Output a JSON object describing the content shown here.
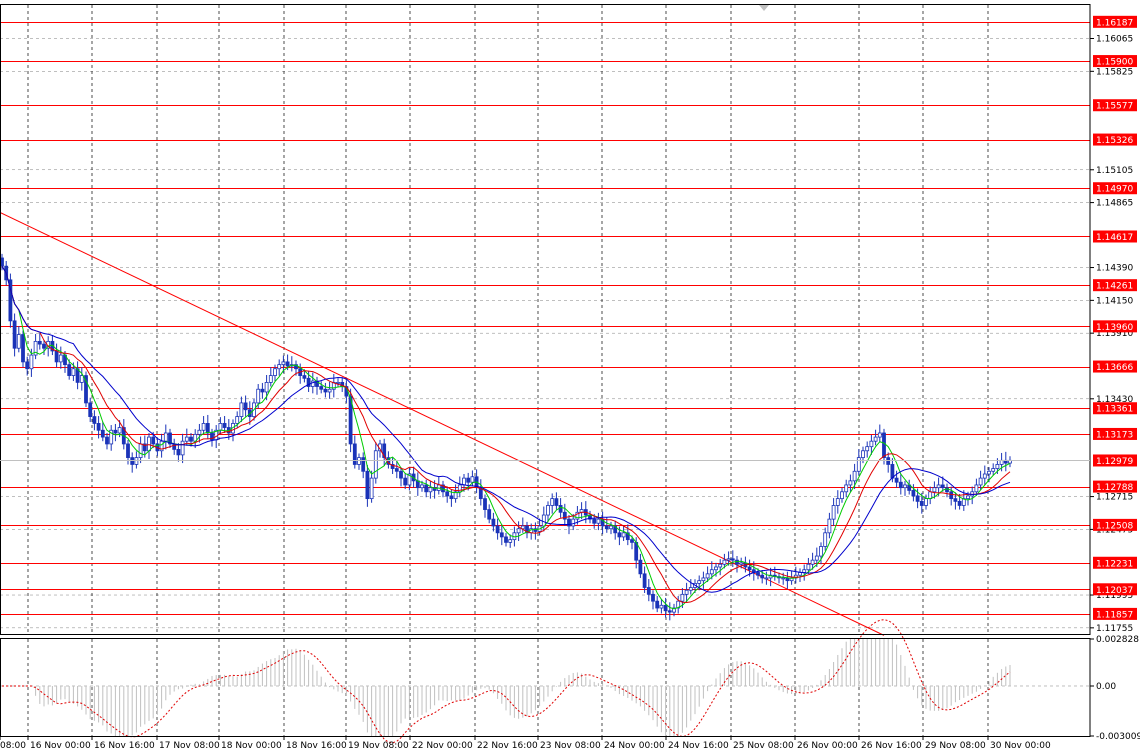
{
  "chart_data": {
    "type": "candlestick",
    "symbol": "",
    "price_range": [
      1.1171,
      1.1631
    ],
    "oscillator_range": [
      -0.003009,
      0.002828
    ],
    "price_ticks": [
      "1.16065",
      "1.15825",
      "1.15105",
      "1.14865",
      "1.14390",
      "1.14150",
      "1.13910",
      "1.13430",
      "1.12715",
      "1.12475",
      "1.11995",
      "1.11755"
    ],
    "oscillator_ticks": [
      "0.002828",
      "0.00",
      "-0.003009"
    ],
    "time_labels": [
      "08:00",
      "16 Nov 00:00",
      "16 Nov 16:00",
      "17 Nov 08:00",
      "18 Nov 00:00",
      "18 Nov 16:00",
      "19 Nov 08:00",
      "22 Nov 00:00",
      "22 Nov 16:00",
      "23 Nov 08:00",
      "24 Nov 00:00",
      "24 Nov 16:00",
      "25 Nov 08:00",
      "26 Nov 00:00",
      "26 Nov 16:00",
      "29 Nov 08:00",
      "30 Nov 00:00"
    ],
    "levels": [
      {
        "price": 1.16187,
        "label": "1.16187"
      },
      {
        "price": 1.159,
        "label": "1.15900"
      },
      {
        "price": 1.15577,
        "label": "1.15577"
      },
      {
        "price": 1.15326,
        "label": "1.15326"
      },
      {
        "price": 1.1497,
        "label": "1.14970"
      },
      {
        "price": 1.14617,
        "label": "1.14617"
      },
      {
        "price": 1.14261,
        "label": "1.14261"
      },
      {
        "price": 1.1396,
        "label": "1.13960"
      },
      {
        "price": 1.13666,
        "label": "1.13666"
      },
      {
        "price": 1.13361,
        "label": "1.13361"
      },
      {
        "price": 1.13173,
        "label": "1.13173"
      },
      {
        "price": 1.12788,
        "label": "1.12788"
      },
      {
        "price": 1.12508,
        "label": "1.12508"
      },
      {
        "price": 1.12231,
        "label": "1.12231"
      },
      {
        "price": 1.12037,
        "label": "1.12037"
      },
      {
        "price": 1.11857,
        "label": "1.11857"
      }
    ],
    "current_price": {
      "price": 1.12979,
      "label": "1.12979"
    },
    "trendline": {
      "from": {
        "bar": -3,
        "price": 1.1483
      },
      "to": {
        "bar": 210,
        "price": 1.117
      }
    },
    "closes": [
      1.144,
      1.143,
      1.14,
      1.138,
      1.139,
      1.137,
      1.1365,
      1.1375,
      1.1385,
      1.1383,
      1.138,
      1.1385,
      1.1378,
      1.137,
      1.1375,
      1.1368,
      1.136,
      1.1365,
      1.1355,
      1.136,
      1.134,
      1.133,
      1.1325,
      1.132,
      1.1315,
      1.131,
      1.132,
      1.1318,
      1.1322,
      1.131,
      1.13,
      1.1295,
      1.13,
      1.131,
      1.1305,
      1.1315,
      1.131,
      1.1305,
      1.1312,
      1.1318,
      1.131,
      1.1306,
      1.1302,
      1.1312,
      1.1315,
      1.1312,
      1.1317,
      1.132,
      1.1325,
      1.1318,
      1.1313,
      1.132,
      1.1325,
      1.1322,
      1.1318,
      1.1325,
      1.133,
      1.134,
      1.1335,
      1.133,
      1.134,
      1.135,
      1.1348,
      1.1355,
      1.136,
      1.1365,
      1.1368,
      1.137,
      1.1367,
      1.1368,
      1.1365,
      1.136,
      1.1358,
      1.1352,
      1.1356,
      1.1352,
      1.135,
      1.1348,
      1.135,
      1.1355,
      1.1355,
      1.1352,
      1.1345,
      1.131,
      1.1295,
      1.13,
      1.129,
      1.127,
      1.1285,
      1.1305,
      1.131,
      1.13,
      1.1295,
      1.1292,
      1.129,
      1.1285,
      1.128,
      1.1288,
      1.1283,
      1.1278,
      1.128,
      1.1275,
      1.1278,
      1.1276,
      1.128,
      1.1275,
      1.1272,
      1.127,
      1.1275,
      1.128,
      1.1285,
      1.1282,
      1.1286,
      1.1278,
      1.127,
      1.1262,
      1.1255,
      1.125,
      1.1245,
      1.1242,
      1.1238,
      1.124,
      1.1245,
      1.1248,
      1.125,
      1.1245,
      1.1248,
      1.1246,
      1.125,
      1.1258,
      1.1265,
      1.127,
      1.1265,
      1.126,
      1.1255,
      1.125,
      1.1255,
      1.126,
      1.1262,
      1.1258,
      1.1255,
      1.1252,
      1.1255,
      1.125,
      1.1248,
      1.125,
      1.1245,
      1.1242,
      1.1245,
      1.124,
      1.1238,
      1.1225,
      1.1215,
      1.1205,
      1.12,
      1.1195,
      1.119,
      1.1192,
      1.1188,
      1.1187,
      1.119,
      1.1195,
      1.12,
      1.1203,
      1.1205,
      1.1208,
      1.121,
      1.1212,
      1.1215,
      1.1218,
      1.122,
      1.1222,
      1.1225,
      1.1226,
      1.1225,
      1.1222,
      1.1223,
      1.122,
      1.1218,
      1.1216,
      1.1214,
      1.1212,
      1.1212,
      1.1214,
      1.1213,
      1.1212,
      1.1212,
      1.121,
      1.1212,
      1.1214,
      1.1216,
      1.1218,
      1.1222,
      1.1225,
      1.1228,
      1.1235,
      1.1245,
      1.1255,
      1.1265,
      1.127,
      1.1275,
      1.128,
      1.1283,
      1.129,
      1.13,
      1.1305,
      1.1308,
      1.1312,
      1.1315,
      1.1318,
      1.13,
      1.1295,
      1.1285,
      1.1282,
      1.1278,
      1.128,
      1.1276,
      1.1272,
      1.1268,
      1.1265,
      1.127,
      1.1275,
      1.1278,
      1.128,
      1.1278,
      1.1275,
      1.127,
      1.1268,
      1.1265,
      1.127,
      1.1272,
      1.1275,
      1.128,
      1.1285,
      1.1288,
      1.129,
      1.1292,
      1.1295,
      1.1298,
      1.1296,
      1.1298
    ],
    "colors": {
      "level": "#ff0000",
      "candle": "#1a33b8",
      "ma_fast": "#00cc00",
      "ma_mid": "#e00000",
      "ma_slow": "#0000cc",
      "oscillator": "#c0c0c0",
      "signal": "#e00000"
    }
  }
}
